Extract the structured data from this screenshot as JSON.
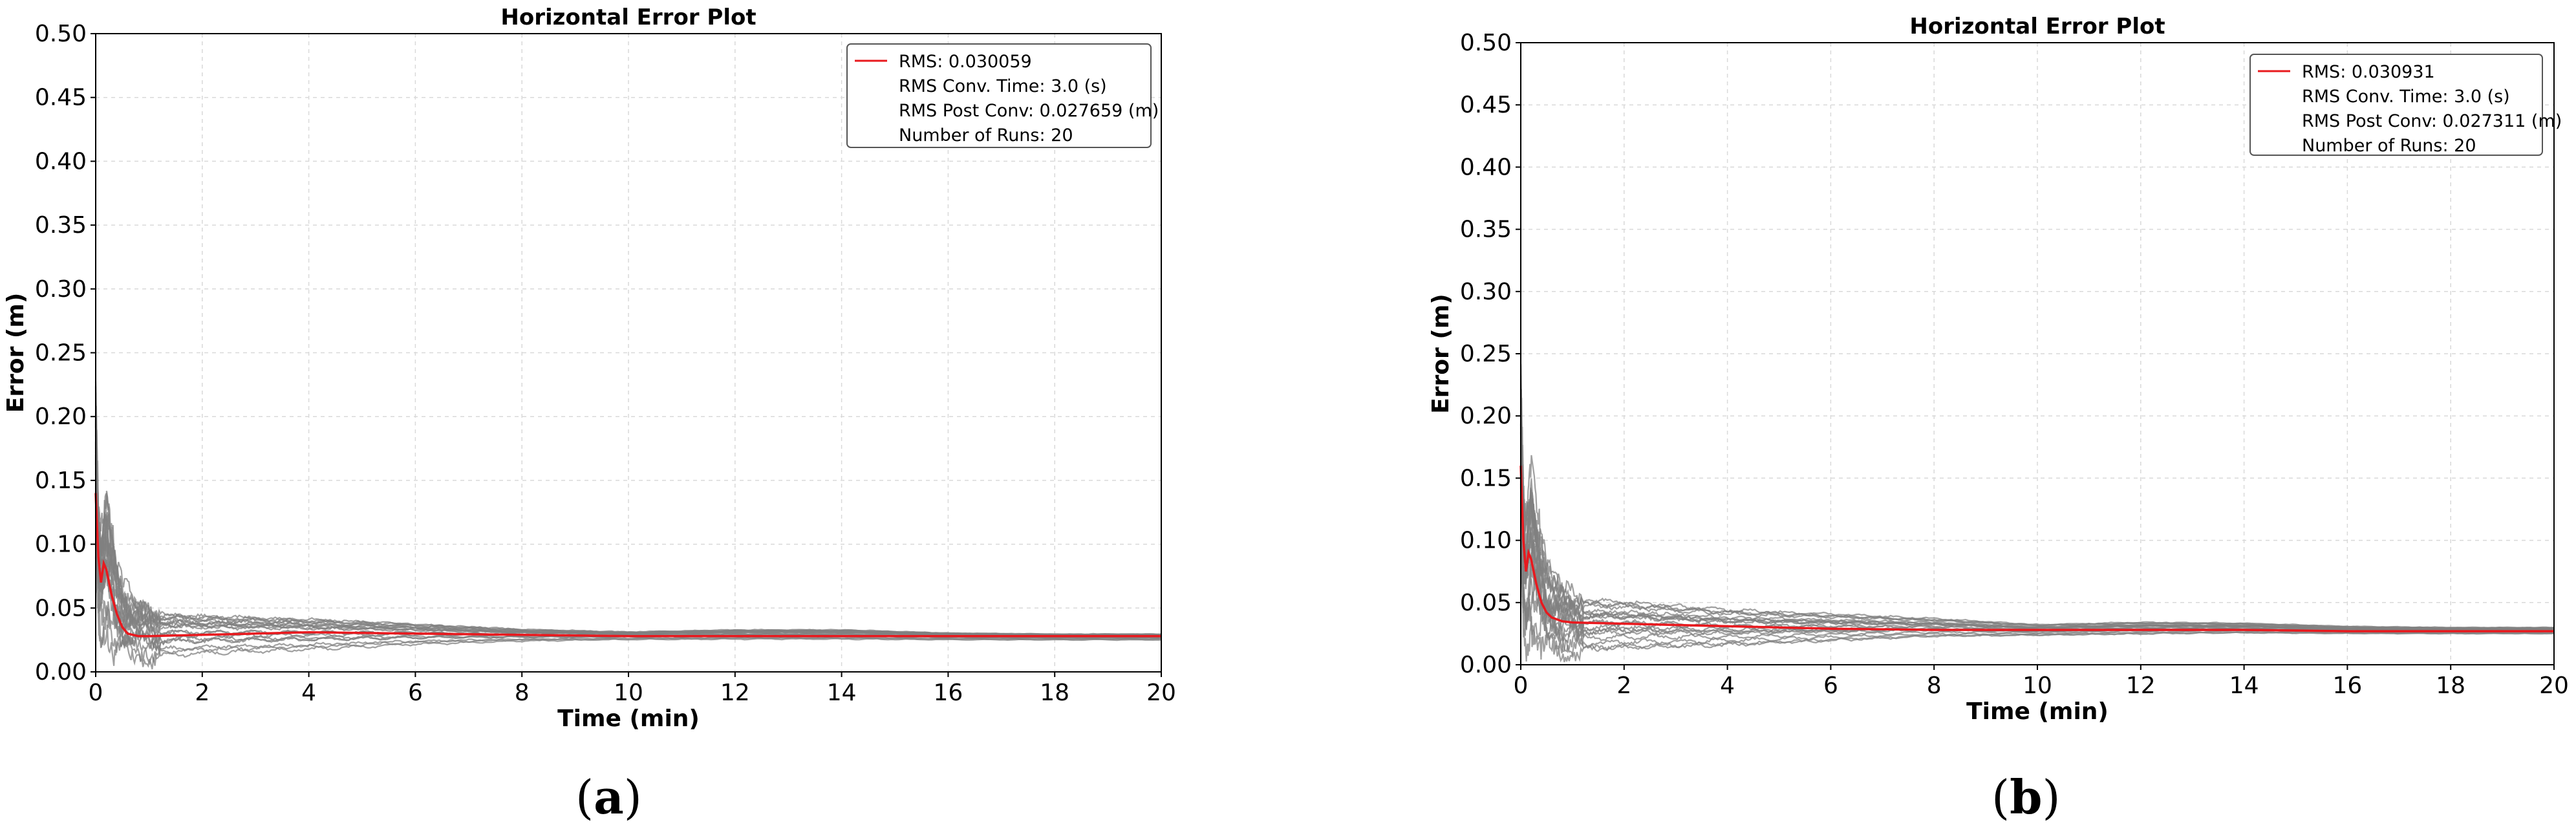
{
  "chart_data": [
    {
      "type": "line",
      "panel_label": "a",
      "title": "Horizontal Error Plot",
      "xlabel": "Time (min)",
      "ylabel": "Error (m)",
      "xlim": [
        0,
        20
      ],
      "ylim": [
        0,
        0.5
      ],
      "xticks": [
        0,
        2,
        4,
        6,
        8,
        10,
        12,
        14,
        16,
        18,
        20
      ],
      "yticks": [
        0.0,
        0.05,
        0.1,
        0.15,
        0.2,
        0.25,
        0.3,
        0.35,
        0.4,
        0.45,
        0.5
      ],
      "ytick_labels": [
        "0.00",
        "0.05",
        "0.10",
        "0.15",
        "0.20",
        "0.25",
        "0.30",
        "0.35",
        "0.40",
        "0.45",
        "0.50"
      ],
      "grid": true,
      "legend_position": "top-right",
      "legend": [
        "RMS: 0.030059",
        "RMS Conv. Time: 3.0 (s)",
        "RMS Post Conv: 0.027659 (m)",
        "Number of Runs: 20"
      ],
      "rms_color": "#e8191e",
      "run_color": "#808080",
      "rms_series": {
        "x": [
          0,
          0.05,
          0.1,
          0.15,
          0.2,
          0.3,
          0.4,
          0.5,
          0.6,
          0.8,
          1.0,
          2,
          4,
          6,
          8,
          10,
          12,
          14,
          16,
          18,
          20
        ],
        "y": [
          0.14,
          0.09,
          0.07,
          0.085,
          0.08,
          0.06,
          0.045,
          0.035,
          0.03,
          0.028,
          0.028,
          0.029,
          0.031,
          0.03,
          0.029,
          0.028,
          0.028,
          0.028,
          0.028,
          0.028,
          0.028
        ]
      },
      "runs_summary": {
        "count": 20,
        "x": [
          0,
          0.05,
          0.1,
          0.2,
          0.3,
          0.5,
          0.8,
          1.2,
          2,
          4,
          6,
          8,
          10,
          12,
          14,
          16,
          18,
          20
        ],
        "y_low": [
          0.08,
          0.02,
          0.005,
          0.02,
          0.01,
          0.005,
          0.002,
          0.005,
          0.008,
          0.012,
          0.018,
          0.022,
          0.024,
          0.024,
          0.024,
          0.024,
          0.024,
          0.024
        ],
        "y_high": [
          0.24,
          0.14,
          0.12,
          0.15,
          0.13,
          0.08,
          0.06,
          0.055,
          0.052,
          0.048,
          0.042,
          0.036,
          0.033,
          0.035,
          0.035,
          0.032,
          0.031,
          0.031
        ]
      }
    },
    {
      "type": "line",
      "panel_label": "b",
      "title": "Horizontal Error Plot",
      "xlabel": "Time (min)",
      "ylabel": "Error (m)",
      "xlim": [
        0,
        20
      ],
      "ylim": [
        0,
        0.5
      ],
      "xticks": [
        0,
        2,
        4,
        6,
        8,
        10,
        12,
        14,
        16,
        18,
        20
      ],
      "yticks": [
        0.0,
        0.05,
        0.1,
        0.15,
        0.2,
        0.25,
        0.3,
        0.35,
        0.4,
        0.45,
        0.5
      ],
      "ytick_labels": [
        "0.00",
        "0.05",
        "0.10",
        "0.15",
        "0.20",
        "0.25",
        "0.30",
        "0.35",
        "0.40",
        "0.45",
        "0.50"
      ],
      "grid": true,
      "legend_position": "top-right",
      "legend": [
        "RMS: 0.030931",
        "RMS Conv. Time: 3.0 (s)",
        "RMS Post Conv: 0.027311 (m)",
        "Number of Runs: 20"
      ],
      "rms_color": "#e8191e",
      "run_color": "#808080",
      "rms_series": {
        "x": [
          0,
          0.05,
          0.1,
          0.15,
          0.2,
          0.3,
          0.4,
          0.5,
          0.6,
          0.8,
          1.0,
          2,
          4,
          6,
          8,
          10,
          12,
          14,
          16,
          18,
          20
        ],
        "y": [
          0.16,
          0.1,
          0.075,
          0.09,
          0.085,
          0.065,
          0.05,
          0.042,
          0.038,
          0.035,
          0.034,
          0.033,
          0.031,
          0.029,
          0.028,
          0.028,
          0.028,
          0.028,
          0.027,
          0.027,
          0.027
        ]
      },
      "runs_summary": {
        "count": 20,
        "x": [
          0,
          0.05,
          0.1,
          0.2,
          0.3,
          0.5,
          0.8,
          1.2,
          2,
          4,
          6,
          8,
          10,
          12,
          14,
          16,
          18,
          20
        ],
        "y_low": [
          0.09,
          0.02,
          0.005,
          0.02,
          0.01,
          0.005,
          0.002,
          0.004,
          0.006,
          0.01,
          0.015,
          0.02,
          0.022,
          0.023,
          0.024,
          0.024,
          0.024,
          0.024
        ],
        "y_high": [
          0.25,
          0.15,
          0.13,
          0.17,
          0.14,
          0.09,
          0.07,
          0.06,
          0.058,
          0.05,
          0.045,
          0.04,
          0.034,
          0.036,
          0.035,
          0.032,
          0.031,
          0.031
        ]
      }
    }
  ]
}
